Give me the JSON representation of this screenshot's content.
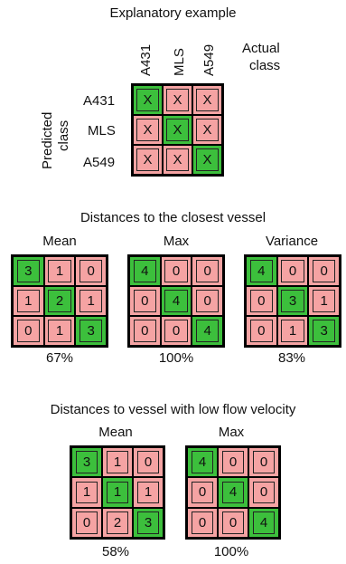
{
  "example": {
    "title": "Explanatory example",
    "col_labels": [
      "A431",
      "MLS",
      "A549"
    ],
    "actual_label_1": "Actual",
    "actual_label_2": "class",
    "row_labels": [
      "A431",
      "MLS",
      "A549"
    ],
    "predicted_label_1": "Predicted",
    "predicted_label_2": "class",
    "matrix": [
      [
        "X",
        "X",
        "X"
      ],
      [
        "X",
        "X",
        "X"
      ],
      [
        "X",
        "X",
        "X"
      ]
    ]
  },
  "closest": {
    "title": "Distances to the closest vessel",
    "panels": [
      {
        "name": "Mean",
        "matrix": [
          [
            "3",
            "1",
            "0"
          ],
          [
            "1",
            "2",
            "1"
          ],
          [
            "0",
            "1",
            "3"
          ]
        ],
        "accuracy": "67%"
      },
      {
        "name": "Max",
        "matrix": [
          [
            "4",
            "0",
            "0"
          ],
          [
            "0",
            "4",
            "0"
          ],
          [
            "0",
            "0",
            "4"
          ]
        ],
        "accuracy": "100%"
      },
      {
        "name": "Variance",
        "matrix": [
          [
            "4",
            "0",
            "0"
          ],
          [
            "0",
            "3",
            "1"
          ],
          [
            "0",
            "1",
            "3"
          ]
        ],
        "accuracy": "83%"
      }
    ]
  },
  "lowflow": {
    "title": "Distances to vessel with low flow velocity",
    "panels": [
      {
        "name": "Mean",
        "matrix": [
          [
            "3",
            "1",
            "0"
          ],
          [
            "1",
            "1",
            "1"
          ],
          [
            "0",
            "2",
            "3"
          ]
        ],
        "accuracy": "58%"
      },
      {
        "name": "Max",
        "matrix": [
          [
            "4",
            "0",
            "0"
          ],
          [
            "0",
            "4",
            "0"
          ],
          [
            "0",
            "0",
            "4"
          ]
        ],
        "accuracy": "100%"
      }
    ]
  },
  "colors": {
    "diagonal": "#3cbf3c",
    "off_diagonal": "#f5a3a3"
  }
}
